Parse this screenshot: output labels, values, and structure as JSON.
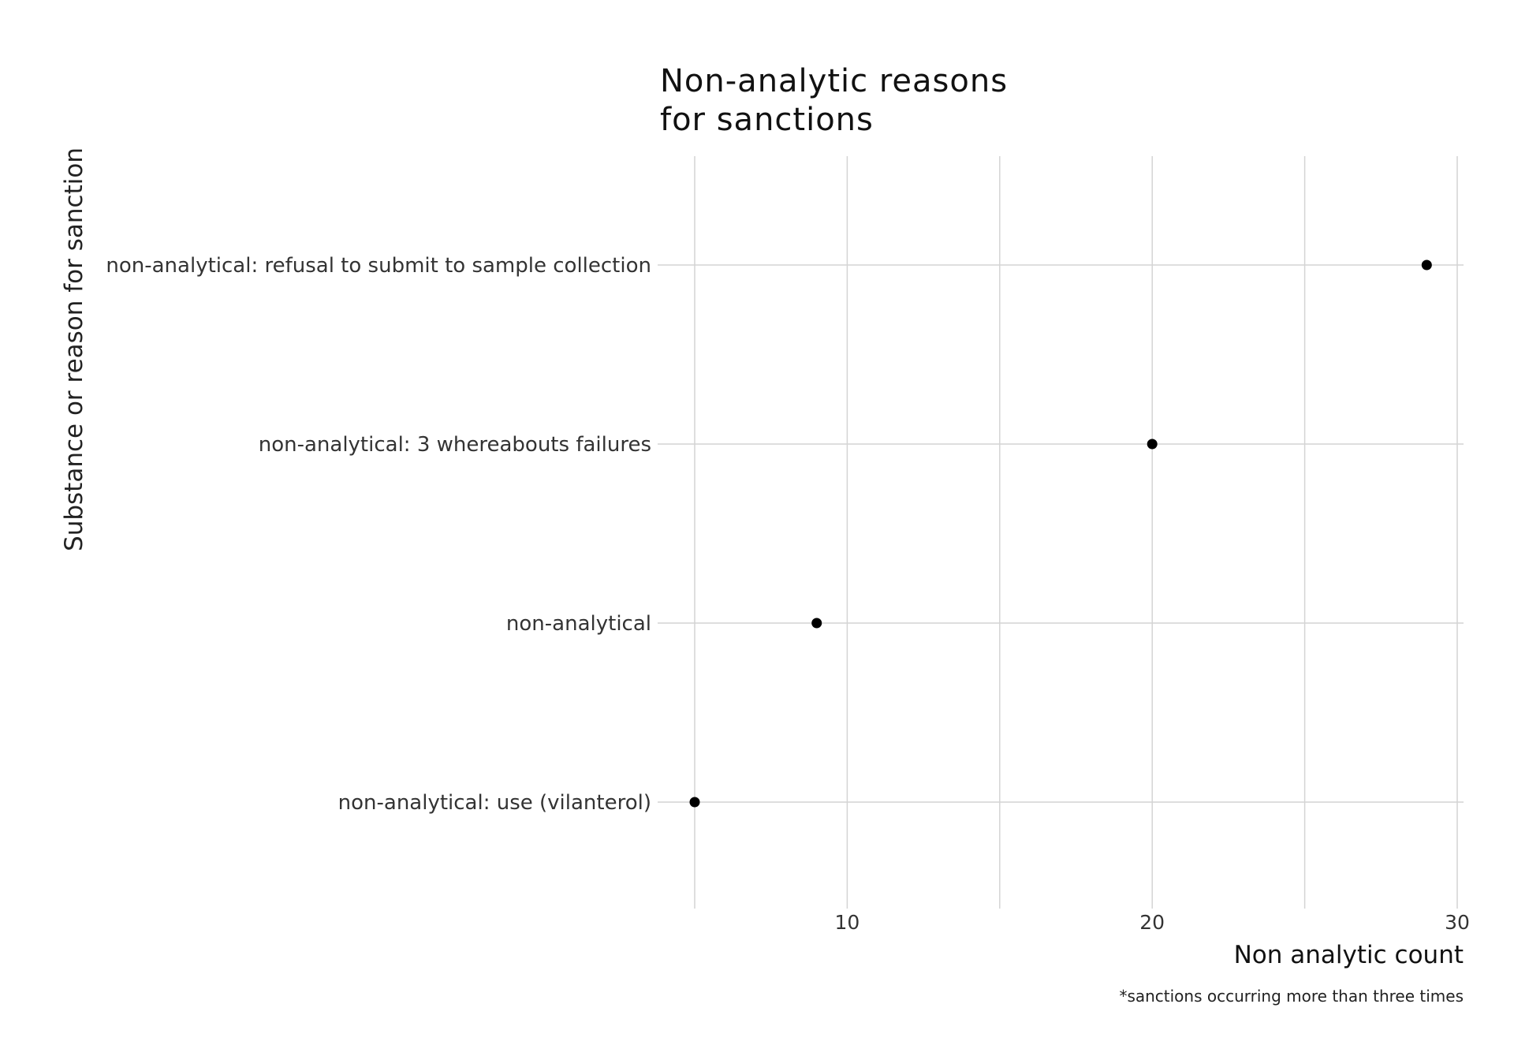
{
  "chart_data": {
    "type": "scatter",
    "title": "Non-analytic reasons\nfor sanctions",
    "xlabel": "Non analytic count",
    "ylabel": "Substance or reason for sanction",
    "caption": "*sanctions occurring more than three times",
    "categories": [
      "non-analytical: refusal to submit to sample collection",
      "non-analytical: 3 whereabouts failures",
      "non-analytical",
      "non-analytical: use (vilanterol)"
    ],
    "values": [
      29,
      20,
      9,
      5
    ],
    "xlim": [
      5,
      30
    ],
    "xticks": [
      10,
      20,
      30
    ],
    "x_minor_grid": [
      5,
      15,
      25
    ],
    "grid": true,
    "legend": "none",
    "point_color": "#000000",
    "grid_color": "#d4d4d4"
  }
}
